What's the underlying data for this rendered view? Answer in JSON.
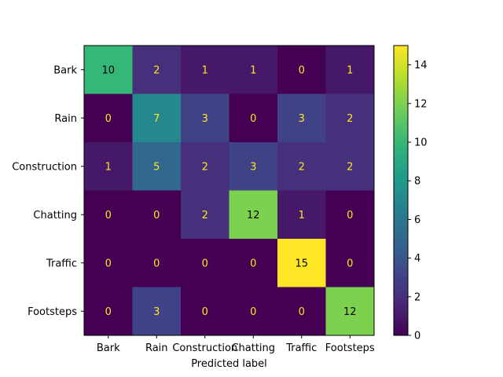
{
  "chart_data": {
    "type": "heatmap",
    "title": "",
    "xlabel": "Predicted label",
    "ylabel": "",
    "x_categories": [
      "Bark",
      "Rain",
      "Construction",
      "Chatting",
      "Traffic",
      "Footsteps"
    ],
    "y_categories": [
      "Bark",
      "Rain",
      "Construction",
      "Chatting",
      "Traffic",
      "Footsteps"
    ],
    "values": [
      [
        10,
        2,
        1,
        1,
        0,
        1
      ],
      [
        0,
        7,
        3,
        0,
        3,
        2
      ],
      [
        1,
        5,
        2,
        3,
        2,
        2
      ],
      [
        0,
        0,
        2,
        12,
        1,
        0
      ],
      [
        0,
        0,
        0,
        0,
        15,
        0
      ],
      [
        0,
        3,
        0,
        0,
        0,
        12
      ]
    ],
    "colorscale": "viridis",
    "value_range": [
      0,
      15
    ],
    "colorbar_ticks": [
      "0",
      "2",
      "4",
      "6",
      "8",
      "10",
      "12",
      "14"
    ],
    "text_color_low": "#fde725",
    "text_color_high": "#000000",
    "grid": false
  }
}
